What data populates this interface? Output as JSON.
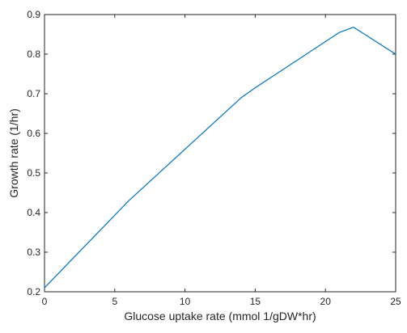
{
  "chart_data": {
    "type": "line",
    "title": "",
    "xlabel": "Glucose uptake rate (mmol 1/gDW*hr)",
    "ylabel": "Growth rate (1/hr)",
    "xlim": [
      0,
      25
    ],
    "ylim": [
      0.2,
      0.9
    ],
    "xticks": [
      0,
      5,
      10,
      15,
      20,
      25
    ],
    "yticks": [
      0.2,
      0.3,
      0.4,
      0.5,
      0.6,
      0.7,
      0.8,
      0.9
    ],
    "grid": false,
    "legend": "none",
    "series": [
      {
        "color": "#0072bd",
        "x": [
          0,
          6,
          14,
          15,
          21,
          22,
          25
        ],
        "y": [
          0.21,
          0.43,
          0.69,
          0.715,
          0.855,
          0.868,
          0.8
        ]
      }
    ]
  }
}
